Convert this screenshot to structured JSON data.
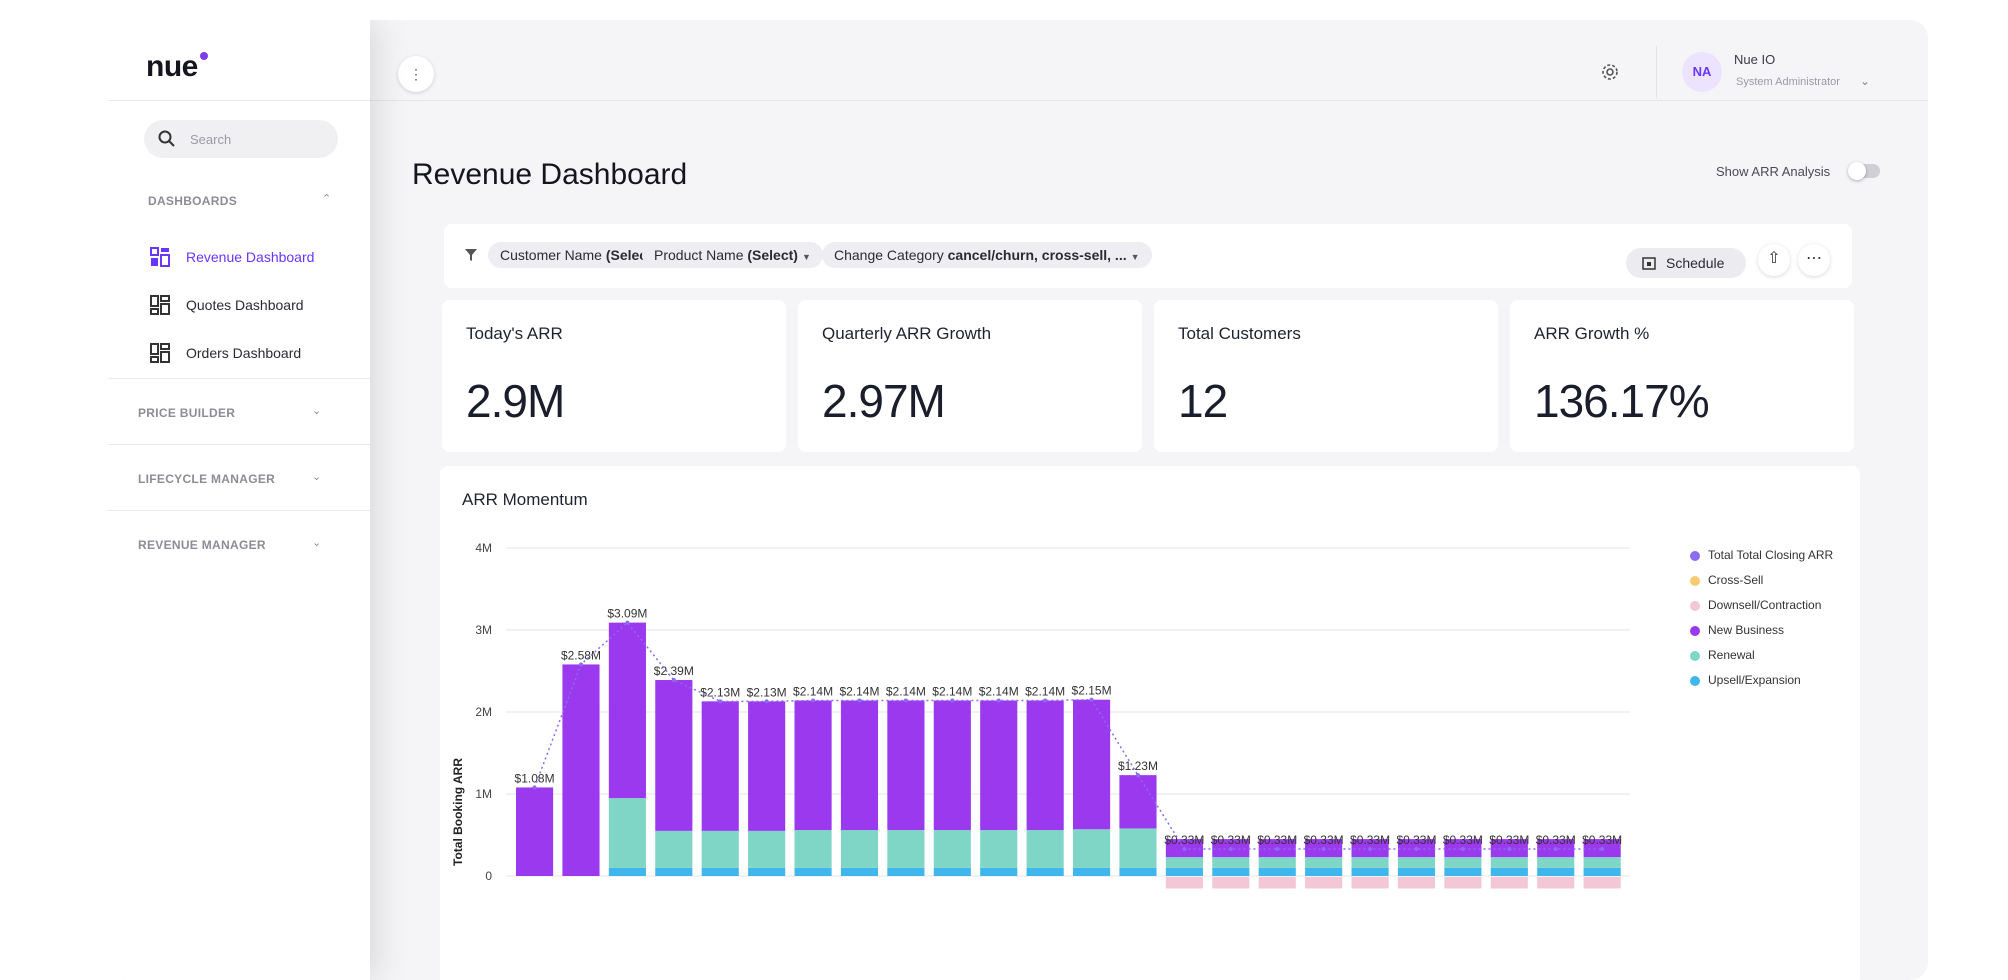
{
  "logo": "nue",
  "colors": {
    "accent": "#6a35ff",
    "new_business": "#9b39ee",
    "renewal": "#7fd6c6",
    "upsell": "#3fb6ec",
    "downsell": "#f4c7d6",
    "cross_sell": "#f7cb72",
    "total_closing": "#8b6bf0"
  },
  "sidebar": {
    "search_placeholder": "Search",
    "dashboards_label": "DASHBOARDS",
    "items": [
      {
        "label": "Revenue Dashboard",
        "icon": "dashboard-icon",
        "active": true
      },
      {
        "label": "Quotes Dashboard",
        "icon": "dashboard-icon",
        "active": false
      },
      {
        "label": "Orders Dashboard",
        "icon": "dashboard-icon",
        "active": false
      }
    ],
    "sections": [
      "PRICE BUILDER",
      "LIFECYCLE MANAGER",
      "REVENUE MANAGER"
    ]
  },
  "header": {
    "user_initials": "NA",
    "user_name": "Nue IO",
    "user_role": "System Administrator"
  },
  "page": {
    "title": "Revenue Dashboard",
    "toggle_label": "Show ARR Analysis",
    "toggle_on": false
  },
  "filters": {
    "customer_prefix": "Customer Name",
    "customer_value": "(Select)",
    "product_prefix": "Product Name",
    "product_value": "(Select)",
    "category_prefix": "Change Category",
    "category_value": "cancel/churn, cross-sell, ...",
    "schedule_label": "Schedule"
  },
  "kpis": [
    {
      "label": "Today's ARR",
      "value": "2.9M"
    },
    {
      "label": "Quarterly ARR Growth",
      "value": "2.97M"
    },
    {
      "label": "Total Customers",
      "value": "12"
    },
    {
      "label": "ARR Growth %",
      "value": "136.17%"
    }
  ],
  "chart_data": {
    "type": "bar",
    "title": "ARR Momentum",
    "ylabel": "Total Booking ARR",
    "ylim": [
      0,
      4
    ],
    "yticks": [
      "0",
      "1M",
      "2M",
      "3M",
      "4M"
    ],
    "legend_placement": "right",
    "legend": [
      "Total Total Closing ARR",
      "Cross-Sell",
      "Downsell/Contraction",
      "New Business",
      "Renewal",
      "Upsell/Expansion"
    ],
    "data_labels": [
      "$1.08M",
      "$2.58M",
      "$3.09M",
      "$2.39M",
      "$2.13M",
      "$2.13M",
      "$2.14M",
      "$2.14M",
      "$2.14M",
      "$2.14M",
      "$2.14M",
      "$2.14M",
      "$2.15M",
      "$1.23M",
      "$0.33M",
      "$0.33M",
      "$0.33M",
      "$0.33M",
      "$0.33M",
      "$0.33M",
      "$0.33M",
      "$0.33M",
      "$0.33M",
      "$0.33M"
    ],
    "series": [
      {
        "name": "Upsell/Expansion",
        "values": [
          0,
          0,
          0.1,
          0.1,
          0.1,
          0.1,
          0.1,
          0.1,
          0.1,
          0.1,
          0.1,
          0.1,
          0.1,
          0.1,
          0.1,
          0.1,
          0.1,
          0.1,
          0.1,
          0.1,
          0.1,
          0.1,
          0.1,
          0.1
        ]
      },
      {
        "name": "Renewal",
        "values": [
          0,
          0,
          0.85,
          0.45,
          0.45,
          0.45,
          0.46,
          0.46,
          0.46,
          0.46,
          0.46,
          0.46,
          0.47,
          0.48,
          0.13,
          0.13,
          0.13,
          0.13,
          0.13,
          0.13,
          0.13,
          0.13,
          0.13,
          0.13
        ]
      },
      {
        "name": "New Business",
        "values": [
          1.08,
          2.58,
          2.14,
          1.84,
          1.58,
          1.58,
          1.58,
          1.58,
          1.58,
          1.58,
          1.58,
          1.58,
          1.58,
          0.65,
          0.22,
          0.22,
          0.22,
          0.22,
          0.22,
          0.22,
          0.22,
          0.22,
          0.22,
          0.22
        ]
      },
      {
        "name": "Downsell/Contraction",
        "values": [
          0,
          0,
          0,
          0,
          0,
          0,
          0,
          0,
          0,
          0,
          0,
          0,
          0,
          0,
          -0.14,
          -0.14,
          -0.14,
          -0.14,
          -0.14,
          -0.14,
          -0.14,
          -0.14,
          -0.14,
          -0.14
        ]
      },
      {
        "name": "Total Total Closing ARR",
        "values": [
          1.08,
          2.58,
          3.09,
          2.39,
          2.13,
          2.13,
          2.14,
          2.14,
          2.14,
          2.14,
          2.14,
          2.14,
          2.15,
          1.23,
          0.33,
          0.33,
          0.33,
          0.33,
          0.33,
          0.33,
          0.33,
          0.33,
          0.33,
          0.33
        ]
      }
    ]
  }
}
